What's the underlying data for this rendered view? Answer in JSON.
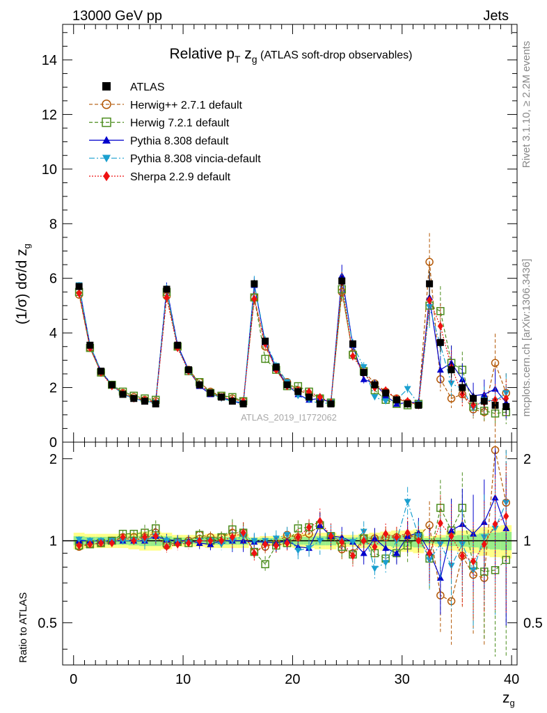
{
  "header": {
    "energy_label": "13000 GeV pp",
    "category_label": "Jets",
    "side_label_top": "Rivet 3.1.10, ≥ 2.2M events",
    "side_label_bottom": "mcplots.cern.ch [arXiv:1306.3436]",
    "watermark": "ATLAS_2019_I1772062"
  },
  "colors": {
    "atlas": "#000000",
    "herwigpp": "#b35806",
    "herwig7": "#4a8c1c",
    "pythia": "#0000cc",
    "vincia": "#1a9fcf",
    "sherpa": "#ee1111",
    "band_outer": "#ffff88",
    "band_inner": "#99ee88"
  },
  "chart_data": [
    {
      "type": "scatter",
      "title": "Relative p_T z_g (ATLAS soft-drop observables)",
      "title_parts": {
        "main": "Relative p",
        "sub_t": "T",
        "z": " z",
        "sub_g": "g",
        "rest": " (ATLAS soft-drop observables)"
      },
      "xlabel": "z_g",
      "ylabel": "(1/σ) dσ/d z_g",
      "ylabel_parts": {
        "main": "(1/σ) dσ/d z",
        "sub": "g"
      },
      "xlim": [
        -1,
        40.5
      ],
      "ylim": [
        0,
        15.3
      ],
      "yticks": [
        "0",
        "2",
        "4",
        "6",
        "8",
        "10",
        "12",
        "14"
      ],
      "legend_position": "top-left",
      "x": [
        0.5,
        1.5,
        2.5,
        3.5,
        4.5,
        5.5,
        6.5,
        7.5,
        8.5,
        9.5,
        10.5,
        11.5,
        12.5,
        13.5,
        14.5,
        15.5,
        16.5,
        17.5,
        18.5,
        19.5,
        20.5,
        21.5,
        22.5,
        23.5,
        24.5,
        25.5,
        26.5,
        27.5,
        28.5,
        29.5,
        30.5,
        31.5,
        32.5,
        33.5,
        34.5,
        35.5,
        36.5,
        37.5,
        38.5,
        39.5
      ],
      "series": [
        {
          "name": "ATLAS",
          "key": "atlas",
          "marker": "square-filled",
          "line": "none",
          "values": [
            5.7,
            3.55,
            2.6,
            2.1,
            1.75,
            1.6,
            1.5,
            1.4,
            5.6,
            3.55,
            2.65,
            2.1,
            1.8,
            1.65,
            1.5,
            1.4,
            5.8,
            3.7,
            2.75,
            2.1,
            1.85,
            1.65,
            1.4,
            1.4,
            5.9,
            3.6,
            2.55,
            2.1,
            1.8,
            1.55,
            1.4,
            1.35,
            5.8,
            3.65,
            2.65,
            2.0,
            1.6,
            1.5,
            1.35,
            1.3
          ]
        },
        {
          "name": "Herwig++ 2.7.1 default",
          "key": "herwigpp",
          "marker": "circle-open",
          "line": "dashed",
          "values": [
            5.4,
            3.45,
            2.55,
            2.1,
            1.8,
            1.65,
            1.55,
            1.5,
            5.35,
            3.5,
            2.65,
            2.2,
            1.85,
            1.7,
            1.6,
            1.5,
            5.3,
            3.5,
            2.7,
            2.2,
            1.9,
            1.75,
            1.6,
            1.45,
            5.5,
            3.25,
            2.6,
            2.15,
            1.85,
            1.6,
            1.45,
            1.4,
            6.6,
            2.3,
            1.6,
            1.75,
            1.2,
            1.1,
            2.9,
            1.8
          ]
        },
        {
          "name": "Herwig 7.2.1 default",
          "key": "herwig7",
          "marker": "square-open",
          "line": "dashed",
          "values": [
            5.5,
            3.45,
            2.55,
            2.1,
            1.85,
            1.7,
            1.6,
            1.55,
            5.5,
            3.5,
            2.6,
            2.2,
            1.8,
            1.7,
            1.65,
            1.5,
            5.3,
            3.05,
            2.65,
            2.05,
            2.05,
            1.85,
            1.6,
            1.45,
            5.6,
            3.2,
            2.6,
            1.9,
            1.55,
            1.4,
            1.35,
            1.4,
            5.0,
            4.8,
            2.9,
            2.65,
            1.3,
            1.15,
            1.05,
            1.1
          ]
        },
        {
          "name": "Pythia 8.308 default",
          "key": "pythia",
          "marker": "triangle-up-filled",
          "line": "solid",
          "values": [
            5.7,
            3.55,
            2.6,
            2.1,
            1.75,
            1.6,
            1.5,
            1.45,
            5.65,
            3.55,
            2.65,
            2.05,
            1.75,
            1.65,
            1.5,
            1.4,
            5.75,
            3.65,
            2.7,
            2.1,
            1.75,
            1.55,
            1.6,
            1.45,
            6.1,
            3.55,
            2.3,
            2.15,
            1.7,
            1.4,
            1.45,
            1.45,
            5.3,
            2.65,
            2.9,
            2.3,
            1.7,
            1.75,
            1.95,
            1.45
          ]
        },
        {
          "name": "Pythia 8.308 vincia-default",
          "key": "vincia",
          "marker": "triangle-down-filled",
          "line": "dashdot",
          "values": [
            5.75,
            3.55,
            2.6,
            2.1,
            1.75,
            1.6,
            1.5,
            1.45,
            5.6,
            3.5,
            2.6,
            2.1,
            1.8,
            1.6,
            1.5,
            1.45,
            5.8,
            3.7,
            2.8,
            2.2,
            1.7,
            1.55,
            1.4,
            1.45,
            5.9,
            3.55,
            2.75,
            1.65,
            1.5,
            1.55,
            1.95,
            1.4,
            4.95,
            3.55,
            2.15,
            1.95,
            1.25,
            1.55,
            1.5,
            1.8
          ]
        },
        {
          "name": "Sherpa 2.2.9 default",
          "key": "sherpa",
          "marker": "diamond-filled",
          "line": "dotted",
          "values": [
            5.45,
            3.45,
            2.55,
            2.05,
            1.8,
            1.6,
            1.55,
            1.45,
            5.3,
            3.45,
            2.6,
            2.1,
            1.8,
            1.65,
            1.55,
            1.5,
            5.25,
            3.6,
            2.65,
            2.05,
            1.9,
            1.85,
            1.65,
            1.45,
            5.85,
            3.15,
            2.55,
            2.0,
            1.9,
            1.6,
            1.5,
            1.35,
            5.2,
            4.25,
            2.75,
            1.75,
            1.35,
            1.45,
            1.55,
            1.6
          ]
        }
      ]
    },
    {
      "type": "scatter",
      "title": "",
      "xlabel": "z_g",
      "ylabel": "Ratio to ATLAS",
      "xlim": [
        -1,
        40.5
      ],
      "ylim": [
        0.35,
        2.3
      ],
      "xticks": [
        "0",
        "10",
        "20",
        "30",
        "40"
      ],
      "yticks": [
        "0.5",
        "1",
        "2"
      ],
      "series": [
        {
          "name": "Herwig++ 2.7.1 default",
          "key": "herwigpp",
          "values": [
            0.95,
            0.97,
            0.98,
            1.0,
            1.03,
            1.03,
            1.03,
            1.07,
            0.96,
            0.99,
            1.0,
            1.05,
            1.03,
            1.03,
            1.07,
            1.07,
            0.91,
            0.95,
            0.98,
            1.05,
            1.03,
            1.06,
            1.14,
            1.04,
            0.93,
            0.9,
            1.02,
            1.02,
            1.03,
            1.03,
            1.04,
            1.04,
            1.14,
            0.63,
            0.6,
            0.88,
            0.75,
            0.73,
            2.15,
            1.38
          ]
        },
        {
          "name": "Herwig 7.2.1 default",
          "key": "herwig7",
          "values": [
            0.96,
            0.97,
            0.98,
            1.0,
            1.06,
            1.06,
            1.07,
            1.11,
            0.98,
            0.99,
            0.98,
            1.05,
            1.0,
            1.03,
            1.1,
            1.07,
            0.91,
            0.82,
            0.96,
            0.98,
            1.11,
            1.12,
            1.14,
            1.04,
            0.95,
            0.89,
            1.02,
            0.9,
            0.86,
            0.9,
            0.96,
            1.04,
            0.86,
            1.32,
            1.09,
            1.32,
            0.81,
            0.77,
            0.78,
            0.85
          ]
        },
        {
          "name": "Pythia 8.308 default",
          "key": "pythia",
          "values": [
            1.0,
            1.0,
            1.0,
            1.0,
            1.0,
            1.0,
            1.0,
            1.04,
            1.01,
            1.0,
            1.0,
            0.98,
            0.97,
            1.0,
            1.0,
            1.0,
            0.99,
            0.99,
            0.98,
            1.0,
            0.95,
            0.94,
            1.14,
            1.04,
            1.03,
            0.99,
            0.9,
            1.02,
            0.94,
            0.9,
            1.04,
            1.07,
            0.91,
            0.73,
            1.09,
            1.15,
            1.06,
            1.17,
            1.44,
            1.11
          ]
        },
        {
          "name": "Pythia 8.308 vincia-default",
          "key": "vincia",
          "values": [
            1.01,
            1.0,
            1.0,
            1.0,
            1.0,
            1.0,
            1.0,
            1.04,
            1.0,
            0.99,
            0.98,
            1.0,
            1.0,
            0.97,
            1.0,
            1.04,
            1.0,
            1.0,
            1.02,
            1.05,
            0.92,
            0.94,
            1.0,
            1.04,
            1.0,
            0.99,
            1.08,
            0.79,
            0.83,
            1.0,
            1.39,
            1.04,
            0.85,
            0.97,
            0.81,
            0.97,
            0.78,
            1.03,
            1.11,
            1.38
          ]
        },
        {
          "name": "Sherpa 2.2.9 default",
          "key": "sherpa",
          "values": [
            0.96,
            0.97,
            0.98,
            0.98,
            1.03,
            1.0,
            1.03,
            1.04,
            0.95,
            0.97,
            0.98,
            1.0,
            1.0,
            1.0,
            1.03,
            1.07,
            0.9,
            0.97,
            0.96,
            0.98,
            1.03,
            1.12,
            1.18,
            1.04,
            0.99,
            0.88,
            1.0,
            0.95,
            1.06,
            1.03,
            1.07,
            1.0,
            0.9,
            1.16,
            1.04,
            0.88,
            0.84,
            0.97,
            1.15,
            1.23
          ]
        }
      ]
    }
  ]
}
